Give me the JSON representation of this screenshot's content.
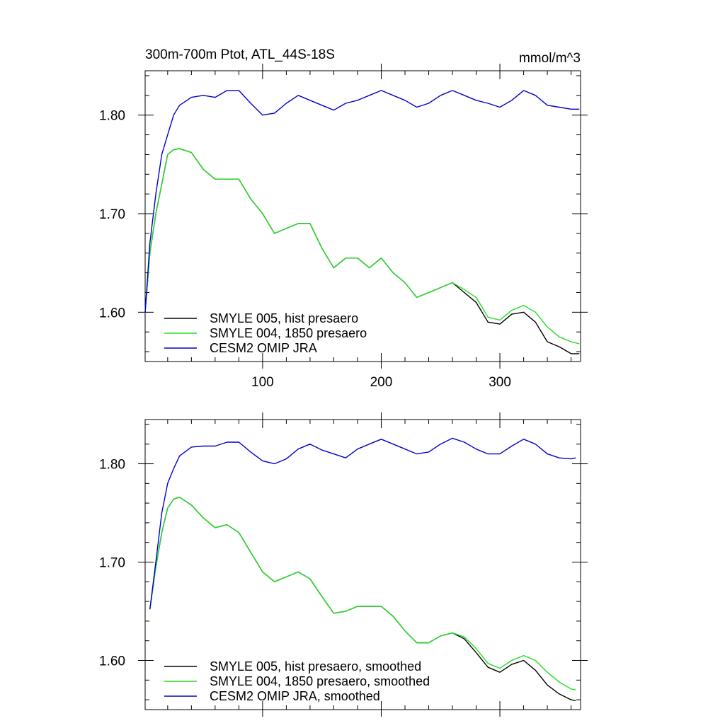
{
  "figure": {
    "title": "300m-700m Ptot, ATL_44S-18S",
    "units": "mmol/m^3"
  },
  "chart_data": [
    {
      "type": "line",
      "title": "300m-700m Ptot, ATL_44S-18S",
      "units_label": "mmol/m^3",
      "xlim": [
        1,
        368
      ],
      "ylim": [
        1.55,
        1.845
      ],
      "xticks": [
        100,
        200,
        300
      ],
      "xtick_labels": [
        "100",
        "200",
        "300"
      ],
      "yticks": [
        1.6,
        1.7,
        1.8
      ],
      "ytick_labels": [
        "1.60",
        "1.70",
        "1.80"
      ],
      "grid": false,
      "legend_position": "bottom-left",
      "x": [
        1,
        5,
        10,
        15,
        20,
        25,
        30,
        40,
        50,
        60,
        70,
        80,
        90,
        100,
        110,
        120,
        130,
        140,
        150,
        160,
        170,
        180,
        190,
        200,
        210,
        220,
        230,
        240,
        250,
        260,
        270,
        280,
        290,
        300,
        310,
        320,
        330,
        340,
        350,
        360,
        367
      ],
      "series": [
        {
          "name": "SMYLE 005, hist presaero",
          "color": "#000000",
          "values": [
            1.6,
            1.66,
            1.7,
            1.73,
            1.76,
            1.765,
            1.766,
            1.762,
            1.745,
            1.735,
            1.735,
            1.735,
            1.715,
            1.7,
            1.68,
            1.685,
            1.69,
            1.69,
            1.665,
            1.645,
            1.655,
            1.655,
            1.645,
            1.655,
            1.64,
            1.63,
            1.615,
            1.62,
            1.625,
            1.63,
            1.62,
            1.61,
            1.59,
            1.588,
            1.598,
            1.6,
            1.59,
            1.57,
            1.565,
            1.558,
            1.558
          ]
        },
        {
          "name": "SMYLE 004, 1850 presaero",
          "color": "#22dd22",
          "values": [
            1.6,
            1.66,
            1.7,
            1.73,
            1.76,
            1.765,
            1.766,
            1.762,
            1.745,
            1.735,
            1.735,
            1.735,
            1.715,
            1.7,
            1.68,
            1.685,
            1.69,
            1.69,
            1.665,
            1.645,
            1.655,
            1.655,
            1.645,
            1.655,
            1.64,
            1.63,
            1.615,
            1.62,
            1.625,
            1.63,
            1.623,
            1.615,
            1.595,
            1.592,
            1.602,
            1.607,
            1.6,
            1.585,
            1.575,
            1.57,
            1.568
          ]
        },
        {
          "name": "CESM2 OMIP JRA",
          "color": "#0000cc",
          "values": [
            1.6,
            1.67,
            1.72,
            1.76,
            1.78,
            1.8,
            1.81,
            1.818,
            1.82,
            1.818,
            1.825,
            1.825,
            1.812,
            1.8,
            1.802,
            1.812,
            1.82,
            1.815,
            1.81,
            1.805,
            1.812,
            1.815,
            1.82,
            1.825,
            1.82,
            1.815,
            1.808,
            1.812,
            1.82,
            1.825,
            1.82,
            1.815,
            1.812,
            1.808,
            1.815,
            1.825,
            1.82,
            1.81,
            1.808,
            1.806,
            1.806
          ]
        }
      ]
    },
    {
      "type": "line",
      "xlim": [
        1,
        368
      ],
      "ylim": [
        1.55,
        1.845
      ],
      "xticks": [
        100,
        200,
        300
      ],
      "xtick_labels": [],
      "yticks": [
        1.6,
        1.7,
        1.8
      ],
      "ytick_labels": [
        "1.60",
        "1.70",
        "1.80"
      ],
      "grid": false,
      "legend_position": "bottom-left",
      "x": [
        5,
        10,
        15,
        20,
        25,
        30,
        40,
        50,
        60,
        70,
        80,
        90,
        100,
        110,
        120,
        130,
        140,
        150,
        160,
        170,
        180,
        190,
        200,
        210,
        220,
        230,
        240,
        250,
        260,
        270,
        280,
        290,
        300,
        310,
        320,
        330,
        340,
        350,
        360,
        364
      ],
      "series": [
        {
          "name": "SMYLE 005, hist presaero, smoothed",
          "color": "#000000",
          "values": [
            1.652,
            1.695,
            1.73,
            1.755,
            1.764,
            1.766,
            1.758,
            1.745,
            1.735,
            1.738,
            1.73,
            1.71,
            1.69,
            1.68,
            1.685,
            1.69,
            1.683,
            1.665,
            1.648,
            1.65,
            1.655,
            1.655,
            1.655,
            1.645,
            1.63,
            1.618,
            1.618,
            1.625,
            1.628,
            1.622,
            1.608,
            1.593,
            1.588,
            1.596,
            1.6,
            1.59,
            1.575,
            1.566,
            1.56,
            1.559
          ]
        },
        {
          "name": "SMYLE 004, 1850 presaero, smoothed",
          "color": "#22dd22",
          "values": [
            1.652,
            1.695,
            1.73,
            1.755,
            1.764,
            1.766,
            1.758,
            1.745,
            1.735,
            1.738,
            1.73,
            1.71,
            1.69,
            1.68,
            1.685,
            1.69,
            1.683,
            1.665,
            1.648,
            1.65,
            1.655,
            1.655,
            1.655,
            1.645,
            1.63,
            1.618,
            1.618,
            1.625,
            1.628,
            1.624,
            1.612,
            1.597,
            1.592,
            1.6,
            1.605,
            1.6,
            1.588,
            1.578,
            1.571,
            1.57
          ]
        },
        {
          "name": "CESM2 OMIP JRA, smoothed",
          "color": "#0000cc",
          "values": [
            1.652,
            1.7,
            1.75,
            1.78,
            1.795,
            1.808,
            1.817,
            1.818,
            1.818,
            1.822,
            1.822,
            1.812,
            1.803,
            1.8,
            1.805,
            1.815,
            1.82,
            1.814,
            1.81,
            1.806,
            1.815,
            1.82,
            1.825,
            1.82,
            1.815,
            1.81,
            1.812,
            1.82,
            1.826,
            1.822,
            1.815,
            1.81,
            1.81,
            1.818,
            1.825,
            1.82,
            1.81,
            1.806,
            1.805,
            1.806
          ]
        }
      ]
    }
  ]
}
